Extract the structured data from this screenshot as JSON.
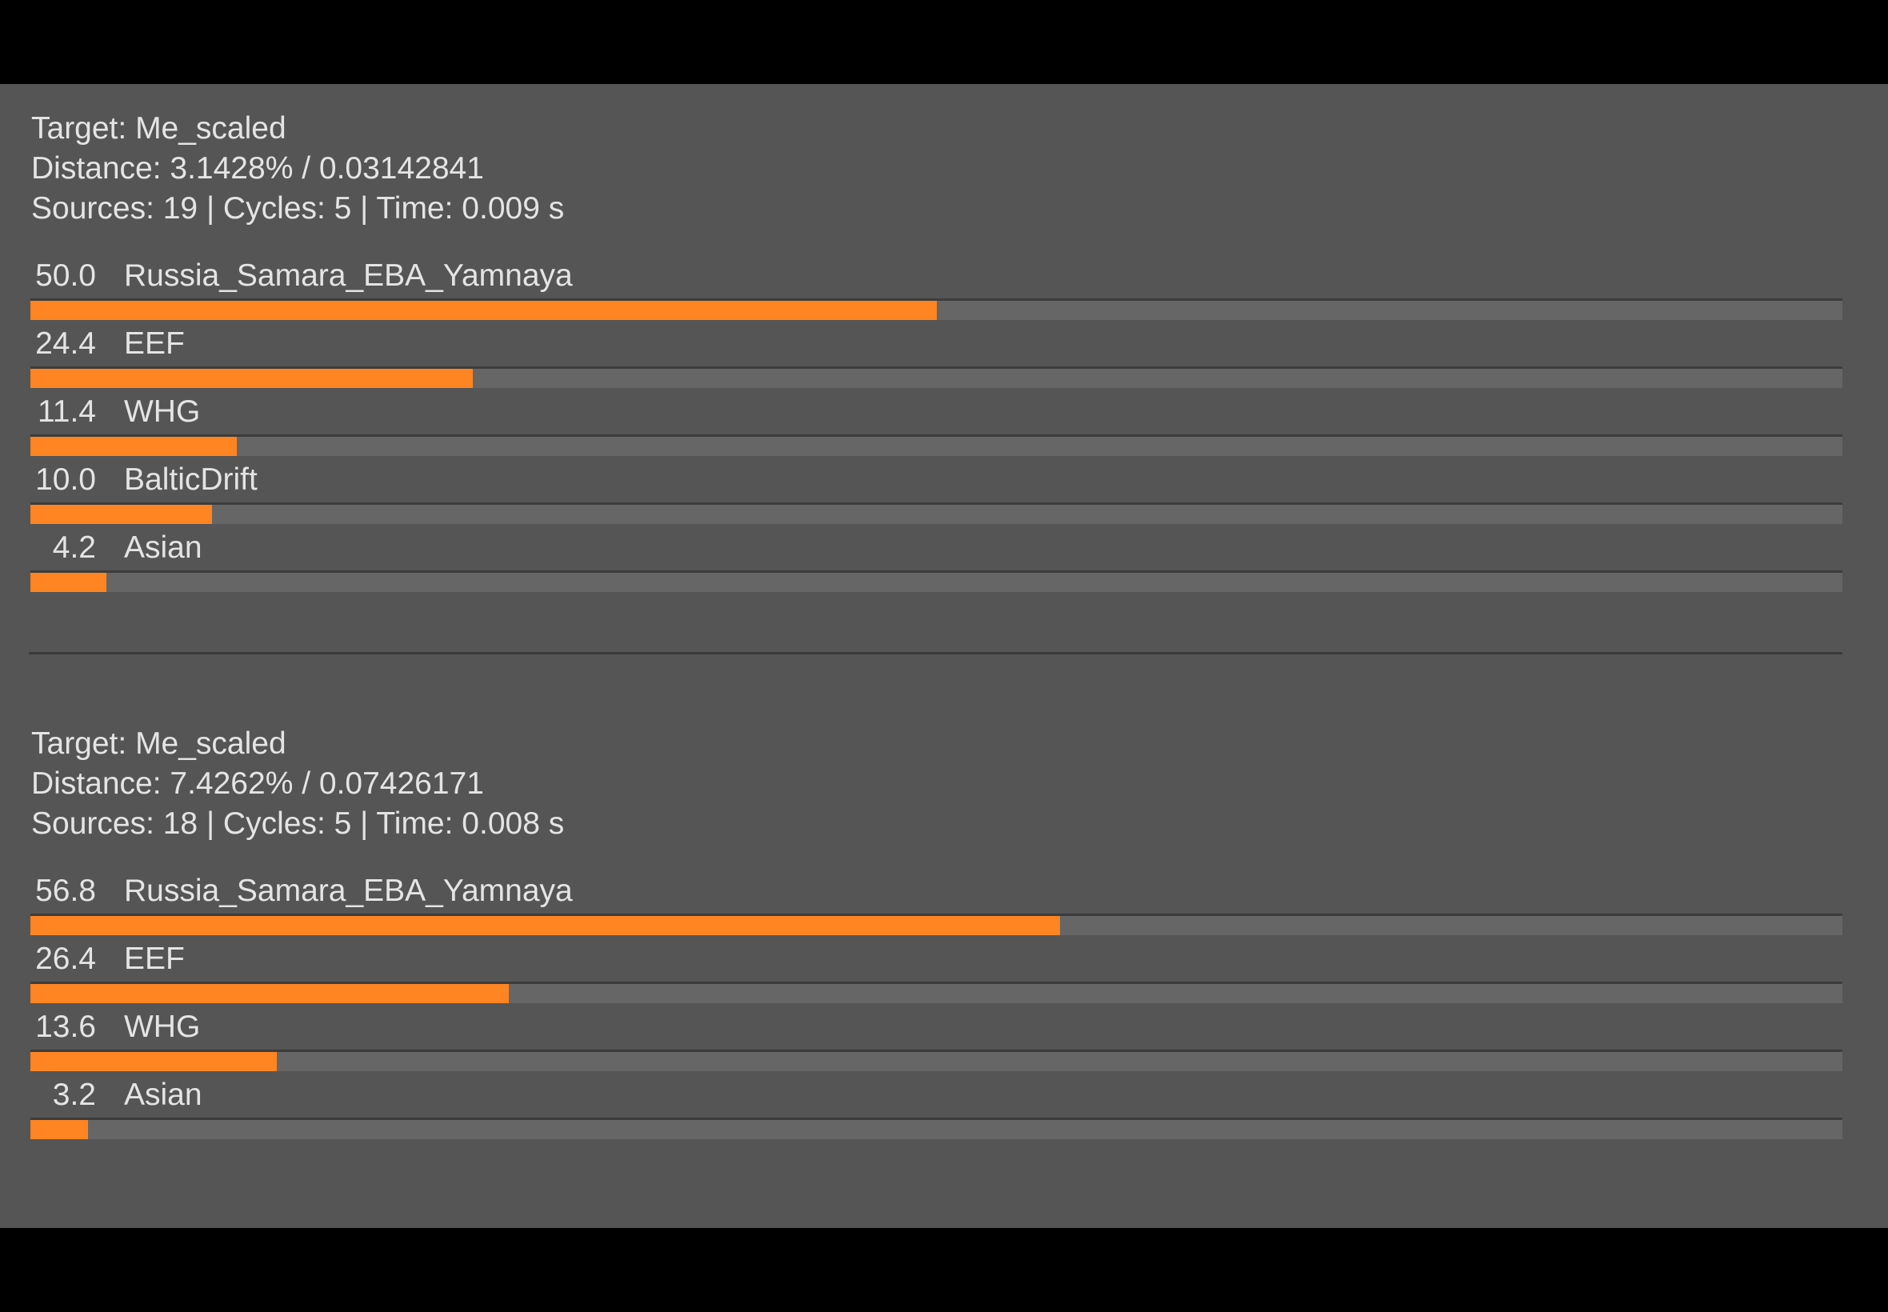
{
  "colors": {
    "accent": "#ff8522",
    "background": "#555555",
    "track": "#666666"
  },
  "results": [
    {
      "target": "Target: Me_scaled",
      "distance": "Distance: 3.1428% / 0.03142841",
      "stats": "Sources: 19 | Cycles: 5 | Time: 0.009 s",
      "components": [
        {
          "value": "50.0",
          "name": "Russia_Samara_EBA_Yamnaya",
          "percent": 50.0
        },
        {
          "value": "24.4",
          "name": "EEF",
          "percent": 24.4
        },
        {
          "value": "11.4",
          "name": "WHG",
          "percent": 11.4
        },
        {
          "value": "10.0",
          "name": "BalticDrift",
          "percent": 10.0
        },
        {
          "value": "4.2",
          "name": "Asian",
          "percent": 4.2
        }
      ]
    },
    {
      "target": "Target: Me_scaled",
      "distance": "Distance: 7.4262% / 0.07426171",
      "stats": "Sources: 18 | Cycles: 5 | Time: 0.008 s",
      "components": [
        {
          "value": "56.8",
          "name": "Russia_Samara_EBA_Yamnaya",
          "percent": 56.8
        },
        {
          "value": "26.4",
          "name": "EEF",
          "percent": 26.4
        },
        {
          "value": "13.6",
          "name": "WHG",
          "percent": 13.6
        },
        {
          "value": "3.2",
          "name": "Asian",
          "percent": 3.2
        }
      ]
    }
  ]
}
